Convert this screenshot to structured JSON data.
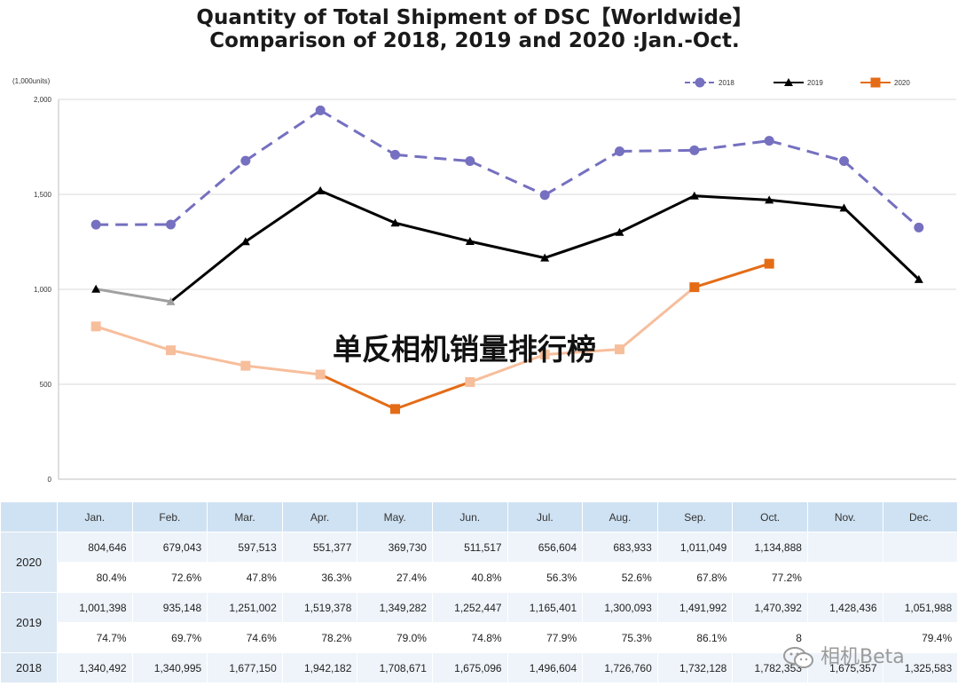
{
  "title": {
    "line1": "Quantity of Total Shipment of DSC【Worldwide】",
    "line2": "Comparison of 2018, 2019 and 2020 :Jan.-Oct."
  },
  "overlay_text": "单反相机销量排行榜",
  "watermark": {
    "text": "相机Beta",
    "icon": "wechat-icon"
  },
  "colors": {
    "s2018": "#7570c0",
    "s2019": "#000000",
    "s2020": "#e46c17",
    "s2020_faded": "#f7be9c",
    "s2019_faded": "#a0a0a0",
    "grid": "#d9d9d9",
    "table_header": "#cfe2f3"
  },
  "chart_data": {
    "type": "line",
    "unit_label": "(1,000units)",
    "categories": [
      "Jan.",
      "Feb.",
      "Mar.",
      "Apr.",
      "May.",
      "Jun.",
      "Jul.",
      "Aug.",
      "Sep.",
      "Oct.",
      "Nov.",
      "Dec."
    ],
    "ylim": [
      0,
      2000
    ],
    "yticks": [
      "0",
      "500",
      "1,000",
      "1,500",
      "2,000"
    ],
    "grid": true,
    "legend_position": "top-right",
    "series": [
      {
        "name": "2018",
        "style": "dashed",
        "marker": "circle",
        "values": [
          1340.492,
          1340.995,
          1677.15,
          1942.182,
          1708.671,
          1675.096,
          1496.604,
          1726.76,
          1732.128,
          1782.353,
          1675.357,
          1325.583
        ]
      },
      {
        "name": "2019",
        "style": "solid",
        "marker": "triangle",
        "values": [
          1001.398,
          935.148,
          1251.002,
          1519.378,
          1349.282,
          1252.447,
          1165.401,
          1300.093,
          1491.992,
          1470.392,
          1428.436,
          1051.988
        ]
      },
      {
        "name": "2020",
        "style": "solid",
        "marker": "square",
        "values": [
          804.646,
          679.043,
          597.513,
          551.377,
          369.73,
          511.517,
          656.604,
          683.933,
          1011.049,
          1134.888,
          null,
          null
        ]
      }
    ]
  },
  "table": {
    "headers": [
      "",
      "Jan.",
      "Feb.",
      "Mar.",
      "Apr.",
      "May.",
      "Jun.",
      "Jul.",
      "Aug.",
      "Sep.",
      "Oct.",
      "Nov.",
      "Dec."
    ],
    "rows": [
      {
        "year": "2020",
        "values": [
          "804,646",
          "679,043",
          "597,513",
          "551,377",
          "369,730",
          "511,517",
          "656,604",
          "683,933",
          "1,011,049",
          "1,134,888",
          "",
          ""
        ],
        "percents": [
          "80.4%",
          "72.6%",
          "47.8%",
          "36.3%",
          "27.4%",
          "40.8%",
          "56.3%",
          "52.6%",
          "67.8%",
          "77.2%",
          "",
          ""
        ]
      },
      {
        "year": "2019",
        "values": [
          "1,001,398",
          "935,148",
          "1,251,002",
          "1,519,378",
          "1,349,282",
          "1,252,447",
          "1,165,401",
          "1,300,093",
          "1,491,992",
          "1,470,392",
          "1,428,436",
          "1,051,988"
        ],
        "percents": [
          "74.7%",
          "69.7%",
          "74.6%",
          "78.2%",
          "79.0%",
          "74.8%",
          "77.9%",
          "75.3%",
          "86.1%",
          "8",
          "",
          "79.4%"
        ]
      },
      {
        "year": "2018",
        "values": [
          "1,340,492",
          "1,340,995",
          "1,677,150",
          "1,942,182",
          "1,708,671",
          "1,675,096",
          "1,496,604",
          "1,726,760",
          "1,732,128",
          "1,782,353",
          "1,675,357",
          "1,325,583"
        ]
      }
    ]
  }
}
